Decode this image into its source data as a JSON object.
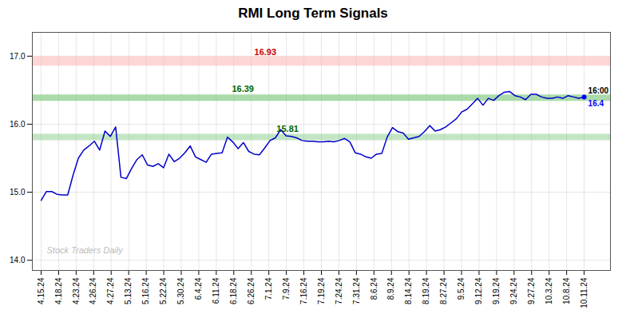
{
  "chart_data": {
    "type": "line",
    "title": "RMI Long Term Signals",
    "color": "#0000cc",
    "grid": true,
    "xlim": [
      -0.5,
      32.5
    ],
    "xticks": [
      {
        "value": 0,
        "label": "4.15.24"
      },
      {
        "value": 1,
        "label": "4.18.24"
      },
      {
        "value": 2,
        "label": "4.23.24"
      },
      {
        "value": 3,
        "label": "4.26.24"
      },
      {
        "value": 4,
        "label": "4.27.24"
      },
      {
        "value": 5,
        "label": "5.13.24"
      },
      {
        "value": 6,
        "label": "5.16.24"
      },
      {
        "value": 7,
        "label": "5.22.24"
      },
      {
        "value": 8,
        "label": "5.30.24"
      },
      {
        "value": 9,
        "label": "6.4.24"
      },
      {
        "value": 10,
        "label": "6.11.24"
      },
      {
        "value": 11,
        "label": "6.18.24"
      },
      {
        "value": 12,
        "label": "6.26.24"
      },
      {
        "value": 13,
        "label": "7.1.24"
      },
      {
        "value": 14,
        "label": "7.9.24"
      },
      {
        "value": 15,
        "label": "7.16.24"
      },
      {
        "value": 16,
        "label": "7.19.24"
      },
      {
        "value": 17,
        "label": "7.24.24"
      },
      {
        "value": 18,
        "label": "7.31.24"
      },
      {
        "value": 19,
        "label": "8.6.24"
      },
      {
        "value": 20,
        "label": "8.9.24"
      },
      {
        "value": 21,
        "label": "8.14.24"
      },
      {
        "value": 22,
        "label": "8.19.24"
      },
      {
        "value": 23,
        "label": "8.27.24"
      },
      {
        "value": 24,
        "label": "9.5.24"
      },
      {
        "value": 25,
        "label": "9.12.24"
      },
      {
        "value": 26,
        "label": "9.19.24"
      },
      {
        "value": 27,
        "label": "9.24.24"
      },
      {
        "value": 28,
        "label": "9.27.24"
      },
      {
        "value": 29,
        "label": "10.3.24"
      },
      {
        "value": 30,
        "label": "10.8.24"
      },
      {
        "value": 31,
        "label": "10.11.24"
      }
    ],
    "ylim": [
      13.85,
      17.35
    ],
    "yticks": [
      14,
      15,
      16,
      17
    ],
    "x": [
      0,
      0.3039,
      0.6078,
      0.9118,
      1.2157,
      1.5196,
      1.8235,
      2.1275,
      2.4314,
      2.7353,
      3.0392,
      3.3431,
      3.6471,
      3.951,
      4.2549,
      4.5588,
      4.8627,
      5.1667,
      5.4706,
      5.7745,
      6.0784,
      6.3824,
      6.6863,
      6.9902,
      7.2941,
      7.598,
      7.902,
      8.2059,
      8.5098,
      8.8137,
      9.1176,
      9.4216,
      9.7255,
      10.0294,
      10.3333,
      10.6373,
      10.9412,
      11.2451,
      11.549,
      11.8529,
      12.1569,
      12.4608,
      12.7647,
      13.0686,
      13.3725,
      13.6765,
      13.9804,
      14.2843,
      14.5882,
      14.8922,
      15.1961,
      15.5,
      15.8039,
      16.1078,
      16.4118,
      16.7157,
      17.0196,
      17.3235,
      17.6275,
      17.9314,
      18.2353,
      18.5392,
      18.8431,
      19.1471,
      19.451,
      19.7549,
      20.0588,
      20.3627,
      20.6667,
      20.9706,
      21.2745,
      21.5784,
      21.8824,
      22.1863,
      22.4902,
      22.7941,
      23.098,
      23.402,
      23.7059,
      24.0098,
      24.3137,
      24.6176,
      24.9216,
      25.2255,
      25.5294,
      25.8333,
      26.1373,
      26.4412,
      26.7451,
      27.049,
      27.3529,
      27.6569,
      27.9608,
      28.2647,
      28.5686,
      28.8725,
      29.1765,
      29.4804,
      29.7843,
      30.0882,
      30.3922,
      30.6961,
      31
    ],
    "values": [
      14.88,
      15.01,
      15.01,
      14.97,
      14.96,
      14.96,
      15.25,
      15.5,
      15.62,
      15.68,
      15.75,
      15.62,
      15.9,
      15.82,
      15.96,
      15.22,
      15.2,
      15.35,
      15.48,
      15.55,
      15.4,
      15.38,
      15.42,
      15.36,
      15.56,
      15.45,
      15.5,
      15.58,
      15.68,
      15.52,
      15.48,
      15.44,
      15.56,
      15.57,
      15.58,
      15.81,
      15.74,
      15.64,
      15.73,
      15.6,
      15.56,
      15.55,
      15.65,
      15.76,
      15.8,
      15.92,
      15.83,
      15.82,
      15.8,
      15.76,
      15.75,
      15.75,
      15.74,
      15.74,
      15.75,
      15.74,
      15.76,
      15.79,
      15.74,
      15.58,
      15.56,
      15.52,
      15.5,
      15.56,
      15.57,
      15.81,
      15.95,
      15.89,
      15.87,
      15.78,
      15.8,
      15.82,
      15.89,
      15.98,
      15.9,
      15.92,
      15.96,
      16.02,
      16.08,
      16.18,
      16.22,
      16.3,
      16.38,
      16.28,
      16.38,
      16.35,
      16.42,
      16.47,
      16.48,
      16.42,
      16.4,
      16.36,
      16.44,
      16.44,
      16.4,
      16.38,
      16.38,
      16.4,
      16.38,
      16.42,
      16.4,
      16.38,
      16.4
    ],
    "reference_lines": [
      {
        "value": 16.93,
        "color": "#ffbbbb",
        "label": "16.93",
        "label_color": "#cc0000"
      },
      {
        "value": 16.39,
        "color": "#88cc88",
        "label": "16.39",
        "label_color": "#006600"
      },
      {
        "value": 15.81,
        "color": "#88cc88",
        "label": "15.81",
        "label_color": "#006600"
      }
    ],
    "last_point": {
      "label": "16:00",
      "value_label": "16.4",
      "color": "#0000ff"
    },
    "watermark": {
      "text": "Stock Traders Daily",
      "color": "#bbbbbb"
    }
  }
}
